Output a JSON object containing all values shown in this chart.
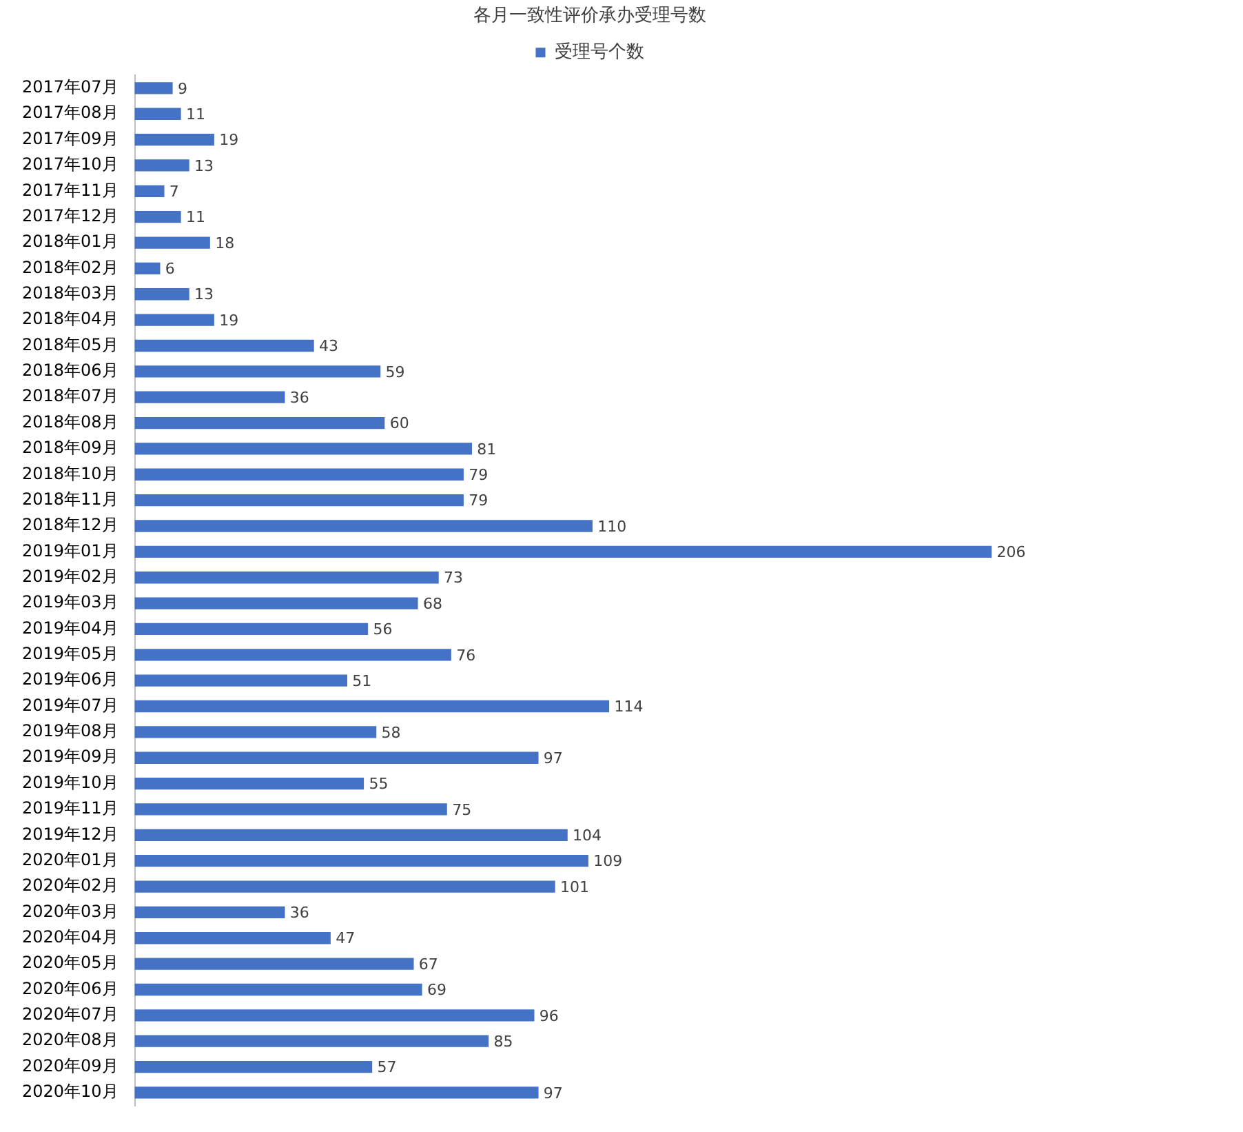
{
  "chart_data": {
    "type": "bar",
    "orientation": "horizontal",
    "title": "各月一致性评价承办受理号数",
    "categories": [
      "2017年07月",
      "2017年08月",
      "2017年09月",
      "2017年10月",
      "2017年11月",
      "2017年12月",
      "2018年01月",
      "2018年02月",
      "2018年03月",
      "2018年04月",
      "2018年05月",
      "2018年06月",
      "2018年07月",
      "2018年08月",
      "2018年09月",
      "2018年10月",
      "2018年11月",
      "2018年12月",
      "2019年01月",
      "2019年02月",
      "2019年03月",
      "2019年04月",
      "2019年05月",
      "2019年06月",
      "2019年07月",
      "2019年08月",
      "2019年09月",
      "2019年10月",
      "2019年11月",
      "2019年12月",
      "2020年01月",
      "2020年02月",
      "2020年03月",
      "2020年04月",
      "2020年05月",
      "2020年06月",
      "2020年07月",
      "2020年08月",
      "2020年09月",
      "2020年10月"
    ],
    "series": [
      {
        "name": "受理号个数",
        "color": "#4472c4",
        "values": [
          9,
          11,
          19,
          13,
          7,
          11,
          18,
          6,
          13,
          19,
          43,
          59,
          36,
          60,
          81,
          79,
          79,
          110,
          206,
          73,
          68,
          56,
          76,
          51,
          114,
          58,
          97,
          55,
          75,
          104,
          109,
          101,
          36,
          47,
          67,
          69,
          96,
          85,
          57,
          97
        ]
      }
    ],
    "data_labels": true,
    "legend": "top",
    "grid": false
  }
}
